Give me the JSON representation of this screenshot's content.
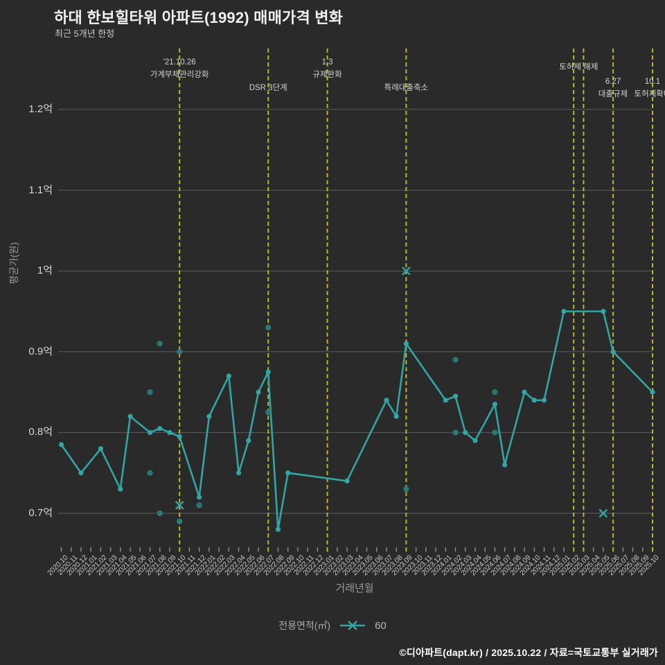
{
  "footer": {
    "text": "©디아파트(dapt.kr) / 2025.10.22 / 자료=국토교통부 실거래가"
  },
  "colors": {
    "background": "#2a2a2a",
    "line": "#31a6a4",
    "marker": "#31a6a4",
    "scatter": "#2b7a78",
    "event_line": "#b8b829",
    "grid": "#5d5d5d",
    "tick": "#8f8f8f",
    "title": "#f2f2f2",
    "text_muted": "#9a9a9a"
  },
  "chart_data": {
    "type": "line",
    "title": "하대 한보힐타워 아파트(1992) 매매가격 변화",
    "subtitle": "최근 5개년 한정",
    "xlabel": "거래년월",
    "ylabel": "평균가(원)",
    "ylim": [
      0.66,
      1.28
    ],
    "grid": true,
    "legend": {
      "label": "전용면적(㎡)",
      "value": "60",
      "position": "bottom-center"
    },
    "y_ticks": [
      {
        "v": 0.7,
        "label": "0.7억"
      },
      {
        "v": 0.8,
        "label": "0.8억"
      },
      {
        "v": 0.9,
        "label": "0.9억"
      },
      {
        "v": 1.0,
        "label": "1억"
      },
      {
        "v": 1.1,
        "label": "1.1억"
      },
      {
        "v": 1.2,
        "label": "1.2억"
      }
    ],
    "categories": [
      "2020.10",
      "2020.11",
      "2020.12",
      "2021.01",
      "2021.02",
      "2021.03",
      "2021.04",
      "2021.05",
      "2021.06",
      "2021.07",
      "2021.08",
      "2021.09",
      "2021.10",
      "2021.11",
      "2021.12",
      "2022.01",
      "2022.02",
      "2022.03",
      "2022.04",
      "2022.05",
      "2022.06",
      "2022.07",
      "2022.08",
      "2022.09",
      "2022.10",
      "2022.11",
      "2022.12",
      "2023.01",
      "2023.02",
      "2023.03",
      "2023.04",
      "2023.05",
      "2023.06",
      "2023.07",
      "2023.08",
      "2023.09",
      "2023.10",
      "2023.11",
      "2023.12",
      "2024.01",
      "2024.02",
      "2024.03",
      "2024.04",
      "2024.05",
      "2024.06",
      "2024.07",
      "2024.08",
      "2024.09",
      "2024.10",
      "2024.11",
      "2024.12",
      "2025.01",
      "2025.02",
      "2025.03",
      "2025.04",
      "2025.05",
      "2025.06",
      "2025.07",
      "2025.08",
      "2025.09",
      "2025.10"
    ],
    "series": [
      {
        "name": "60",
        "points": [
          [
            "2020.10",
            0.785
          ],
          [
            "2020.12",
            0.75
          ],
          [
            "2021.02",
            0.78
          ],
          [
            "2021.04",
            0.73
          ],
          [
            "2021.05",
            0.82
          ],
          [
            "2021.07",
            0.8
          ],
          [
            "2021.08",
            0.805
          ],
          [
            "2021.09",
            0.8
          ],
          [
            "2021.10",
            0.795
          ],
          [
            "2021.12",
            0.72
          ],
          [
            "2022.01",
            0.82
          ],
          [
            "2022.03",
            0.87
          ],
          [
            "2022.04",
            0.75
          ],
          [
            "2022.05",
            0.79
          ],
          [
            "2022.06",
            0.85
          ],
          [
            "2022.07",
            0.875
          ],
          [
            "2022.08",
            0.68
          ],
          [
            "2022.09",
            0.75
          ],
          [
            "2023.03",
            0.74
          ],
          [
            "2023.07",
            0.84
          ],
          [
            "2023.08",
            0.82
          ],
          [
            "2023.09",
            0.91
          ],
          [
            "2024.01",
            0.84
          ],
          [
            "2024.02",
            0.845
          ],
          [
            "2024.03",
            0.8
          ],
          [
            "2024.04",
            0.79
          ],
          [
            "2024.06",
            0.835
          ],
          [
            "2024.07",
            0.76
          ],
          [
            "2024.09",
            0.85
          ],
          [
            "2024.10",
            0.84
          ],
          [
            "2024.11",
            0.84
          ],
          [
            "2025.01",
            0.95
          ],
          [
            "2025.05",
            0.95
          ],
          [
            "2025.06",
            0.9
          ],
          [
            "2025.10",
            0.85
          ]
        ]
      }
    ],
    "scatter_points": [
      [
        "2021.07",
        0.85
      ],
      [
        "2021.07",
        0.75
      ],
      [
        "2021.08",
        0.91
      ],
      [
        "2021.08",
        0.7
      ],
      [
        "2021.10",
        0.9
      ],
      [
        "2021.10",
        0.69
      ],
      [
        "2021.12",
        0.71
      ],
      [
        "2022.07",
        0.93
      ],
      [
        "2022.07",
        0.825
      ],
      [
        "2023.09",
        0.73
      ],
      [
        "2024.02",
        0.89
      ],
      [
        "2024.02",
        0.8
      ],
      [
        "2024.06",
        0.85
      ],
      [
        "2024.06",
        0.8
      ]
    ],
    "x_mark_points": [
      [
        "2021.10",
        0.71
      ],
      [
        "2023.09",
        1.0
      ],
      [
        "2025.05",
        0.7
      ]
    ],
    "events": [
      {
        "month": "2021.10",
        "lines": [
          "'21.10.26",
          "가계부채관리강화"
        ],
        "row": "two_high"
      },
      {
        "month": "2022.07",
        "lines": [
          "DSR 3단계"
        ],
        "row": "one_mid"
      },
      {
        "month": "2023.01",
        "lines": [
          "1.3",
          "규제완화"
        ],
        "row": "two_high"
      },
      {
        "month": "2023.09",
        "lines": [
          "특례대출축소"
        ],
        "row": "one_mid"
      },
      {
        "month": "2025.02",
        "lines": [],
        "row": "one_high"
      },
      {
        "month": "2025.03",
        "lines": [
          "토허제 해제"
        ],
        "row": "one_high",
        "center_between": [
          "2025.02",
          "2025.03"
        ]
      },
      {
        "month": "2025.06",
        "lines": [
          "6.27",
          "대출규제"
        ],
        "row": "two_low"
      },
      {
        "month": "2025.10",
        "lines": [
          "10.1",
          "토허제확대"
        ],
        "row": "two_low"
      }
    ]
  }
}
